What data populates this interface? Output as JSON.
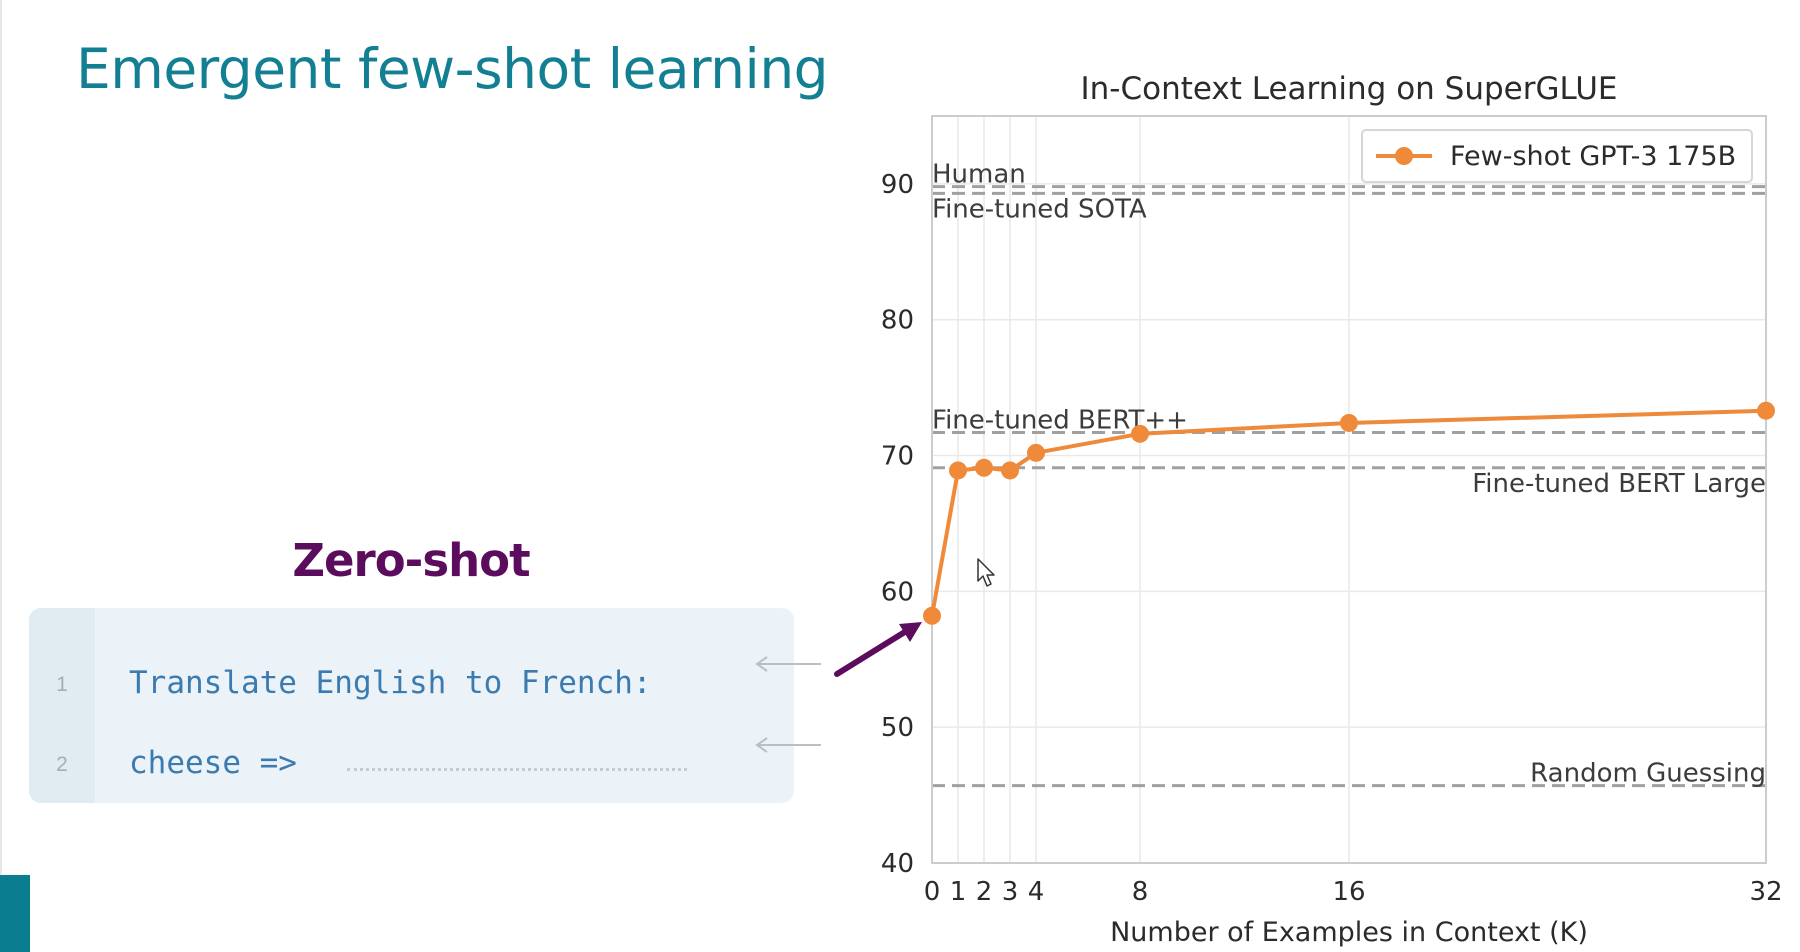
{
  "slide": {
    "title": "Emergent few-shot learning",
    "title_color": "#137f93",
    "accent_color": "#0b7d91"
  },
  "zero_shot": {
    "label": "Zero-shot",
    "label_color": "#5c0c5c",
    "arrow_color": "#5c0c5c",
    "box_background": "#ecf3f8",
    "gutter_background": "#e1ebf2",
    "code_color": "#3b7bb0",
    "lines": [
      {
        "number": "1",
        "text": "Translate English to French:"
      },
      {
        "number": "2",
        "text": "cheese =>"
      }
    ]
  },
  "chart_data": {
    "type": "line",
    "title": "In-Context Learning on SuperGLUE",
    "xlabel": "Number of Examples in Context (K)",
    "ylabel": "",
    "xlim": [
      0,
      32
    ],
    "ylim": [
      40,
      95
    ],
    "x_ticks": [
      0,
      1,
      2,
      3,
      4,
      8,
      16,
      32
    ],
    "y_ticks": [
      40,
      50,
      60,
      70,
      80,
      90
    ],
    "grid": true,
    "legend_position": "top-right",
    "series": [
      {
        "name": "Few-shot GPT-3 175B",
        "color": "#ee8a3a",
        "x": [
          0,
          1,
          2,
          3,
          4,
          8,
          16,
          32
        ],
        "y": [
          58.2,
          68.9,
          69.1,
          68.9,
          70.2,
          71.6,
          72.4,
          73.3
        ]
      }
    ],
    "reference_lines": [
      {
        "label": "Human",
        "value": 89.8,
        "label_side": "left-above"
      },
      {
        "label": "Fine-tuned SOTA",
        "value": 89.3,
        "label_side": "left-below"
      },
      {
        "label": "Fine-tuned BERT++",
        "value": 71.7,
        "label_side": "left-above"
      },
      {
        "label": "Fine-tuned BERT Large",
        "value": 69.1,
        "label_side": "right-below"
      },
      {
        "label": "Random Guessing",
        "value": 45.7,
        "label_side": "right-above"
      }
    ],
    "reference_line_color": "#a0a0a0"
  }
}
